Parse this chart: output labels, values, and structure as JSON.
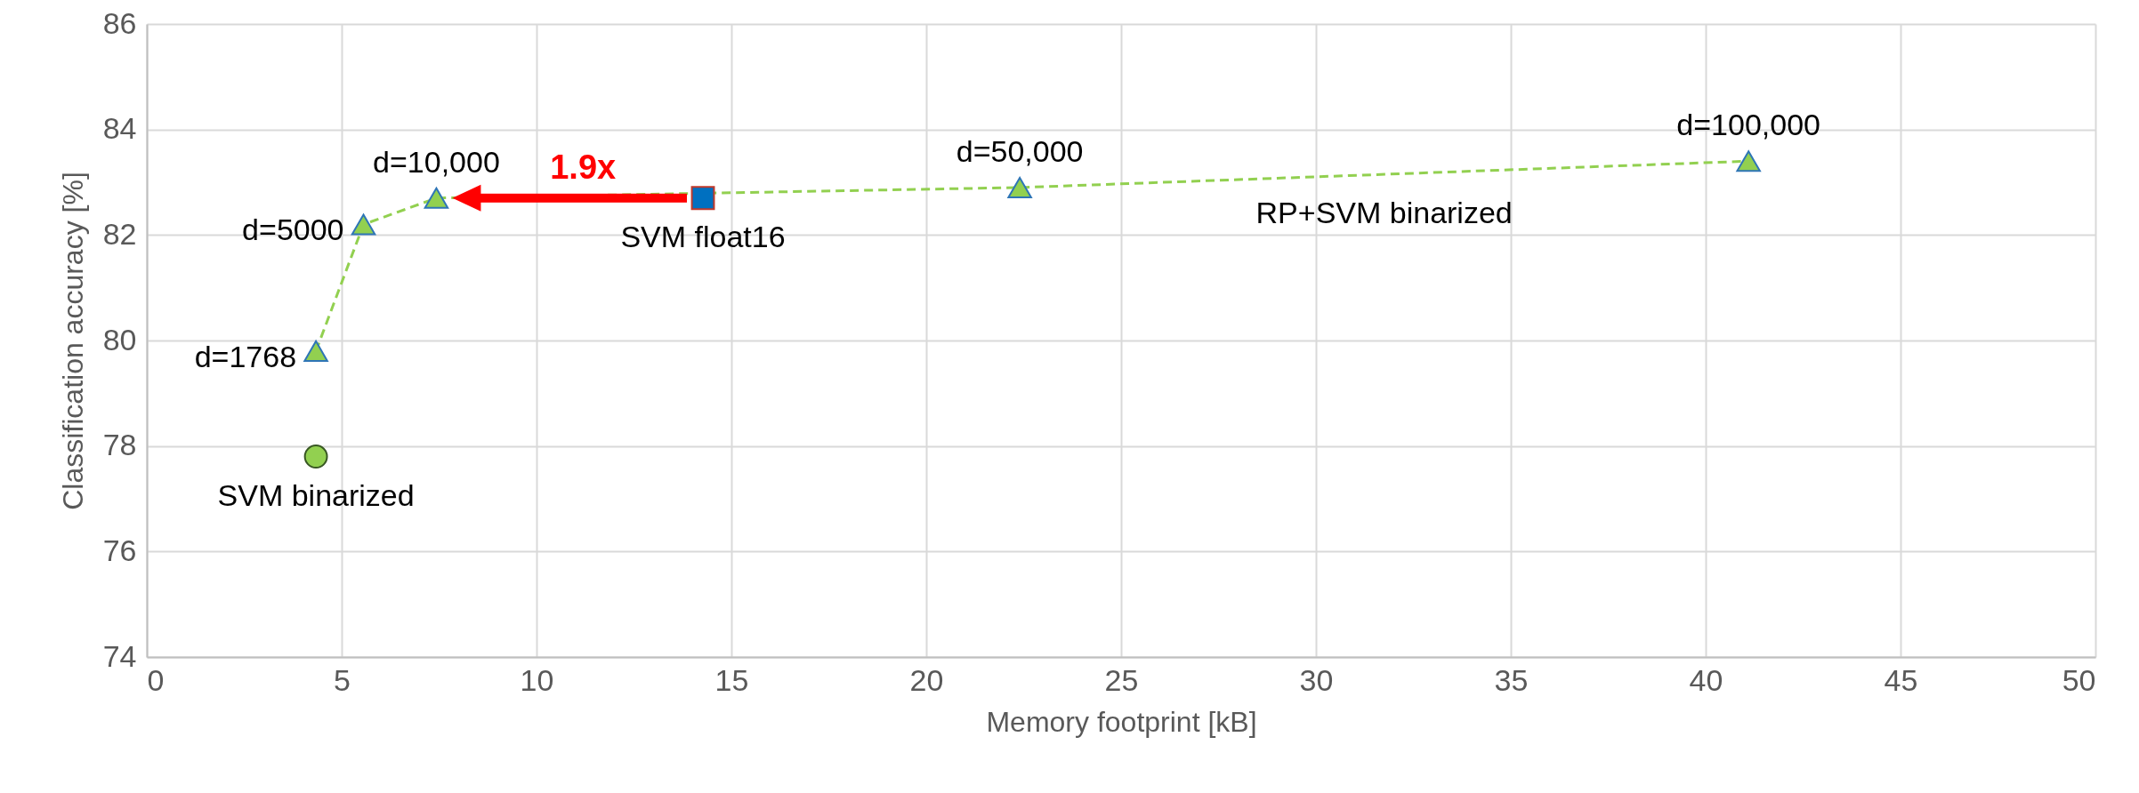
{
  "chart_data": {
    "type": "scatter",
    "xlabel": "Memory footprint [kB]",
    "ylabel": "Classification accuracy [%]",
    "xlim": [
      0,
      50
    ],
    "xticks": [
      0,
      5,
      10,
      15,
      20,
      25,
      30,
      35,
      40,
      45,
      50
    ],
    "ylim": [
      74,
      86
    ],
    "yticks": [
      74,
      76,
      78,
      80,
      82,
      84,
      86
    ],
    "grid": true,
    "legend": false,
    "series": [
      {
        "name": "RP+SVM  binarized",
        "type": "line",
        "marker": "triangle",
        "line_style": "dashed",
        "color": "#92d050",
        "x": [
          4.34,
          5.56,
          7.43,
          22.4,
          41.1
        ],
        "values": [
          79.8,
          82.2,
          82.7,
          82.9,
          83.4
        ]
      },
      {
        "name": "SVM float16",
        "type": "scatter",
        "marker": "square",
        "color": "#0070c0",
        "x": [
          14.27
        ],
        "values": [
          82.7
        ]
      },
      {
        "name": "SVM binarized",
        "type": "scatter",
        "marker": "circle",
        "color": "#92d050",
        "x": [
          4.34
        ],
        "values": [
          77.8
        ]
      }
    ],
    "annotations": [
      {
        "text": "d=1768",
        "x": 4.34,
        "y": 79.8
      },
      {
        "text": "d=5000",
        "x": 5.56,
        "y": 82.2
      },
      {
        "text": "d=10,000",
        "x": 7.43,
        "y": 82.7
      },
      {
        "text": "d=50,000",
        "x": 22.4,
        "y": 82.9
      },
      {
        "text": "d=100,000",
        "x": 41.1,
        "y": 83.4
      },
      "1.9x"
    ]
  }
}
